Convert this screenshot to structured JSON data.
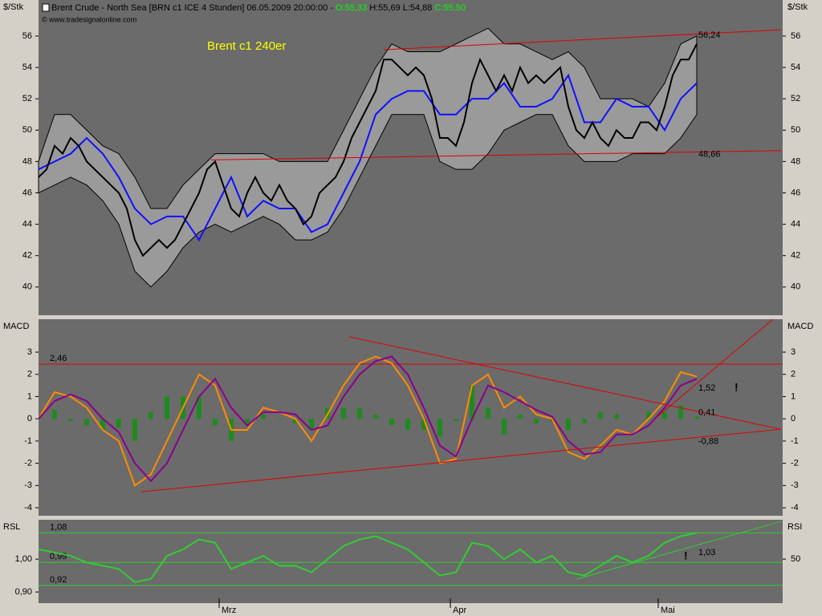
{
  "header": {
    "title": "Brent Crude - North Sea [BRN c1 ICE  4 Stunden] 06.05.2009 20:00:00 - ",
    "open": "O:55,33",
    "high": "H:55,69",
    "low": "L:54,88",
    "close": "C:55,50",
    "source": "© www.tradesignalonline.com"
  },
  "chart_data": [
    {
      "type": "line",
      "title": "Brent c1 240er",
      "ylabel": "$/Stk",
      "ylim": [
        38.2,
        58.3
      ],
      "yticks": [
        40,
        42,
        44,
        46,
        48,
        50,
        52,
        54,
        56
      ],
      "xlim": [
        0,
        92.7
      ],
      "band": {
        "color": "#9a9a9a",
        "x": [
          0,
          2,
          4,
          6,
          8,
          10,
          12,
          14,
          16,
          18,
          20,
          22,
          24,
          26,
          28,
          30,
          32,
          34,
          36,
          38,
          40,
          42,
          44,
          46,
          48,
          50,
          52,
          54,
          56,
          58,
          60,
          62,
          64,
          66,
          68,
          70,
          72,
          74,
          76,
          78,
          80,
          82
        ],
        "upper": [
          48,
          51,
          51,
          50,
          49,
          48.5,
          47,
          45,
          45,
          46.5,
          47.5,
          48.5,
          48.5,
          48.5,
          48.5,
          48,
          48,
          48,
          48,
          50,
          52,
          54,
          55.5,
          55,
          55,
          55,
          55.5,
          56,
          56.5,
          55.5,
          55.5,
          55,
          54.5,
          55,
          54,
          52,
          52,
          52,
          51.5,
          53,
          55.5,
          56
        ],
        "lower": [
          46,
          46.5,
          47,
          46.5,
          45.5,
          44,
          41,
          40,
          41,
          42.5,
          43.5,
          44,
          43.5,
          44,
          44.5,
          44,
          43,
          43,
          43.5,
          45,
          47,
          49,
          51,
          51,
          51,
          48,
          47.5,
          47.5,
          48.5,
          50,
          50.5,
          51,
          51,
          49,
          48,
          48,
          48,
          48.5,
          48.5,
          48.5,
          49.5,
          51
        ]
      },
      "series": [
        {
          "color": "#1010ff",
          "x": [
            0,
            2,
            4,
            6,
            8,
            10,
            12,
            14,
            16,
            18,
            20,
            22,
            24,
            26,
            28,
            30,
            32,
            34,
            36,
            38,
            40,
            42,
            44,
            46,
            48,
            50,
            52,
            54,
            56,
            58,
            60,
            62,
            64,
            66,
            68,
            70,
            72,
            74,
            76,
            78,
            80,
            82
          ],
          "values": [
            47.5,
            48,
            48.5,
            49.5,
            48.5,
            47,
            45,
            44,
            44.5,
            44.5,
            43,
            45,
            47,
            44.5,
            45.5,
            45,
            45,
            43.5,
            44,
            46,
            48,
            51,
            52,
            52.5,
            52.5,
            51,
            51,
            52,
            52,
            53,
            51.5,
            51.5,
            52,
            53.5,
            50.5,
            50.5,
            52,
            51.5,
            51.5,
            50,
            52,
            53
          ]
        },
        {
          "color": "#000000",
          "x": [
            0,
            1,
            2,
            3,
            4,
            5,
            6,
            7,
            8,
            9,
            10,
            11,
            12,
            13,
            14,
            15,
            16,
            17,
            18,
            19,
            20,
            21,
            22,
            23,
            24,
            25,
            26,
            27,
            28,
            29,
            30,
            31,
            32,
            33,
            34,
            35,
            36,
            37,
            38,
            39,
            40,
            41,
            42,
            43,
            44,
            45,
            46,
            47,
            48,
            49,
            50,
            51,
            52,
            53,
            54,
            55,
            56,
            57,
            58,
            59,
            60,
            61,
            62,
            63,
            64,
            65,
            66,
            67,
            68,
            69,
            70,
            71,
            72,
            73,
            74,
            75,
            76,
            77,
            78,
            79,
            80,
            81,
            82
          ],
          "values": [
            47,
            47.5,
            49,
            48.5,
            49.5,
            49,
            48,
            47.5,
            47,
            46.5,
            46,
            45,
            43,
            42,
            42.5,
            43,
            42.5,
            43,
            44,
            45,
            46,
            47.5,
            48,
            46.5,
            45,
            44.5,
            46,
            47,
            46,
            45.5,
            46.5,
            45.5,
            45,
            44,
            44.5,
            46,
            46.5,
            47,
            48,
            49.5,
            50.5,
            51.5,
            52.5,
            54.5,
            54.5,
            54,
            53.5,
            54,
            53.5,
            52,
            49.5,
            49.5,
            49,
            50.5,
            53,
            54.5,
            53.5,
            52.5,
            53.5,
            52.5,
            54,
            53,
            53.5,
            53,
            53.5,
            54,
            51.5,
            50,
            49.5,
            50.5,
            49.5,
            49,
            50,
            49.5,
            49.5,
            50.5,
            50.5,
            50,
            51.5,
            53.5,
            54.5,
            54.5,
            55.5
          ]
        }
      ],
      "trendlines": [
        {
          "color": "#e00000",
          "x": [
            43,
            92.5
          ],
          "y": [
            55.13,
            56.4
          ]
        },
        {
          "color": "#e00000",
          "x": [
            21.5,
            92.5
          ],
          "y": [
            48.1,
            48.7
          ]
        }
      ],
      "label_color": "#e00000",
      "value_labels": [
        {
          "value": 56.24,
          "label": "56,24"
        },
        {
          "value": 48.66,
          "label": "48,66"
        }
      ]
    },
    {
      "type": "line",
      "ylabel": "MACD",
      "ylim": [
        -4.36,
        4.48
      ],
      "yticks": [
        -4,
        -3,
        -2,
        -1,
        0,
        1,
        2,
        3
      ],
      "xlim": [
        0,
        92.7
      ],
      "series": [
        {
          "kind": "bar",
          "color": "#1f8a1f",
          "x": [
            0,
            2,
            4,
            6,
            8,
            10,
            12,
            14,
            16,
            18,
            20,
            22,
            24,
            26,
            28,
            30,
            32,
            34,
            36,
            38,
            40,
            42,
            44,
            46,
            48,
            50,
            52,
            54,
            56,
            58,
            60,
            62,
            64,
            66,
            68,
            70,
            72,
            74,
            76,
            78,
            80,
            82
          ],
          "values": [
            0,
            0.4,
            -0.1,
            -0.3,
            -0.5,
            -0.4,
            -1,
            0.3,
            1,
            1,
            1,
            -0.3,
            -1,
            -0.2,
            0.2,
            0,
            -0.2,
            -0.5,
            0.5,
            0.5,
            0.5,
            0.2,
            -0.3,
            -0.5,
            -0.5,
            -0.8,
            -0.1,
            1.5,
            0.5,
            -0.7,
            0.2,
            -0.2,
            -0.1,
            -0.5,
            -0.2,
            0.3,
            0.2,
            0,
            0.3,
            0.3,
            0.6,
            0.1
          ]
        },
        {
          "color": "#ff8c00",
          "x": [
            0,
            2,
            4,
            6,
            8,
            10,
            12,
            14,
            16,
            18,
            20,
            22,
            24,
            26,
            28,
            30,
            32,
            34,
            36,
            38,
            40,
            42,
            44,
            46,
            48,
            50,
            52,
            54,
            56,
            58,
            60,
            62,
            64,
            66,
            68,
            70,
            72,
            74,
            76,
            78,
            80,
            82
          ],
          "values": [
            0,
            1.2,
            1,
            0.5,
            -0.5,
            -1,
            -3,
            -2.5,
            -1,
            0.5,
            2,
            1.5,
            -0.5,
            -0.5,
            0.5,
            0.3,
            0,
            -1,
            0.2,
            1.5,
            2.5,
            2.8,
            2.5,
            1.5,
            0,
            -2,
            -1.8,
            1.5,
            2,
            0.5,
            1,
            0.2,
            0,
            -1.5,
            -1.8,
            -1.2,
            -0.5,
            -0.7,
            0,
            0.8,
            2.1,
            1.9
          ]
        },
        {
          "color": "#8b008b",
          "x": [
            0,
            2,
            4,
            6,
            8,
            10,
            12,
            14,
            16,
            18,
            20,
            22,
            24,
            26,
            28,
            30,
            32,
            34,
            36,
            38,
            40,
            42,
            44,
            46,
            48,
            50,
            52,
            54,
            56,
            58,
            60,
            62,
            64,
            66,
            68,
            70,
            72,
            74,
            76,
            78,
            80,
            82
          ],
          "values": [
            0,
            0.8,
            1.1,
            0.8,
            0,
            -0.6,
            -2,
            -2.8,
            -2,
            -0.5,
            1,
            1.8,
            0.5,
            -0.3,
            0.3,
            0.3,
            0.2,
            -0.5,
            -0.3,
            1,
            2,
            2.6,
            2.8,
            2,
            0.5,
            -1.2,
            -1.7,
            0,
            1.5,
            1.2,
            0.8,
            0.4,
            0.1,
            -1,
            -1.6,
            -1.5,
            -0.7,
            -0.7,
            -0.3,
            0.5,
            1.5,
            1.8
          ]
        }
      ],
      "hlines": [
        {
          "value": 2.46,
          "label": "2,46",
          "color": "#e00000"
        }
      ],
      "trendlines": [
        {
          "color": "#e00000",
          "x": [
            38.7,
            92.5
          ],
          "y": [
            3.69,
            -0.47
          ]
        },
        {
          "color": "#e00000",
          "x": [
            12.8,
            92.5
          ],
          "y": [
            -3.28,
            -0.47
          ]
        },
        {
          "color": "#e00000",
          "x": [
            77,
            91.5
          ],
          "y": [
            0.07,
            4.48
          ]
        }
      ],
      "label_color": "#e00000",
      "value_labels": [
        {
          "value": 1.52,
          "label": "1,52"
        },
        {
          "value": 0.41,
          "label": "0,41"
        },
        {
          "value": -0.88,
          "label": "-0,88"
        }
      ],
      "notes": [
        {
          "text": "!",
          "color": "#e00000"
        }
      ]
    },
    {
      "type": "line",
      "ylabel": "RSL",
      "y2label": "RSI",
      "ylim": [
        0.866,
        1.12
      ],
      "yticks": [
        {
          "value": 0.9,
          "label": "0,90"
        },
        {
          "value": 1,
          "label": "1,00"
        }
      ],
      "y2lim": [
        27.6,
        70
      ],
      "y2ticks": [
        50
      ],
      "xlim": [
        0,
        92.7
      ],
      "xticks": [
        {
          "value": 22.5,
          "label": "Mrz"
        },
        {
          "value": 51.3,
          "label": "Apr"
        },
        {
          "value": 77.2,
          "label": "Mai"
        }
      ],
      "series": [
        {
          "color": "#33cc33",
          "x": [
            0,
            2,
            4,
            6,
            8,
            10,
            12,
            14,
            16,
            18,
            20,
            22,
            24,
            26,
            28,
            30,
            32,
            34,
            36,
            38,
            40,
            42,
            44,
            46,
            48,
            50,
            52,
            54,
            56,
            58,
            60,
            62,
            64,
            66,
            68,
            70,
            72,
            74,
            76,
            78,
            80,
            82
          ],
          "values": [
            1.03,
            1.02,
            1.01,
            0.99,
            0.98,
            0.97,
            0.93,
            0.94,
            1.01,
            1.03,
            1.06,
            1.05,
            0.97,
            0.99,
            1.01,
            0.98,
            0.98,
            0.96,
            1,
            1.04,
            1.06,
            1.07,
            1.05,
            1.03,
            0.99,
            0.95,
            0.96,
            1.05,
            1.04,
            1,
            1.03,
            0.99,
            1.01,
            0.96,
            0.95,
            0.98,
            1.01,
            0.99,
            1.01,
            1.05,
            1.07,
            1.08
          ]
        }
      ],
      "hlines": [
        {
          "value": 1.08,
          "label": "1,08",
          "color": "#33cc33"
        },
        {
          "value": 0.99,
          "label": "0,99",
          "color": "#33cc33"
        },
        {
          "value": 0.92,
          "label": "0,92",
          "color": "#33cc33"
        }
      ],
      "trendlines": [
        {
          "color": "#33cc33",
          "x": [
            67,
            92.5
          ],
          "y": [
            0.939,
            1.115
          ]
        }
      ],
      "label_color": "#33cc33",
      "value_labels": [
        {
          "value": 1.03,
          "label": "1,03"
        }
      ],
      "notes": [
        {
          "text": "!",
          "color": "#ffff00"
        }
      ]
    }
  ]
}
